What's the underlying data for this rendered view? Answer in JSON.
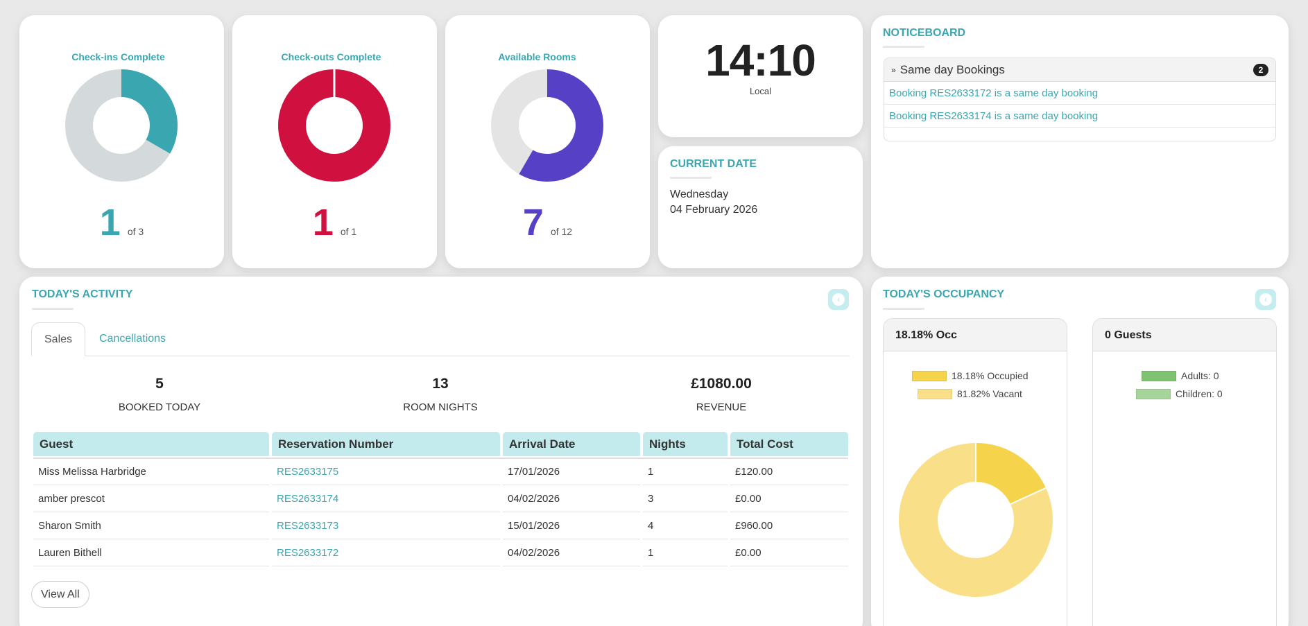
{
  "colors": {
    "teal": "#3aa6b0",
    "crimson": "#d01140",
    "purple": "#5540c6",
    "ring_bg": "#d4d9dc",
    "ring_bg_light": "#e4e4e4",
    "occupied": "#f5d34a",
    "vacant": "#f9e088",
    "adults": "#7ec36f",
    "children": "#a6d59a"
  },
  "checkins": {
    "title": "Check-ins Complete",
    "count": "1",
    "of": "of 3",
    "value": 1,
    "total": 3
  },
  "checkouts": {
    "title": "Check-outs Complete",
    "count": "1",
    "of": "of 1",
    "value": 1,
    "total": 1
  },
  "rooms": {
    "title": "Available Rooms",
    "count": "7",
    "of": "of 12",
    "value": 7,
    "total": 12
  },
  "clock": {
    "time": "14:10",
    "zone": "Local"
  },
  "current_date": {
    "title": "CURRENT DATE",
    "day": "Wednesday",
    "date": "04 February 2026"
  },
  "noticeboard": {
    "title": "NOTICEBOARD",
    "group_label": "Same day Bookings",
    "badge": "2",
    "items": [
      "Booking RES2633172 is a same day booking",
      "Booking RES2633174 is a same day booking"
    ]
  },
  "activity": {
    "title": "TODAY'S ACTIVITY",
    "tabs": [
      "Sales",
      "Cancellations"
    ],
    "stats": [
      {
        "value": "5",
        "label": "BOOKED TODAY"
      },
      {
        "value": "13",
        "label": "ROOM NIGHTS"
      },
      {
        "value": "£1080.00",
        "label": "REVENUE"
      }
    ],
    "columns": [
      "Guest",
      "Reservation Number",
      "Arrival Date",
      "Nights",
      "Total Cost"
    ],
    "rows": [
      [
        "Miss Melissa Harbridge",
        "RES2633175",
        "17/01/2026",
        "1",
        "£120.00"
      ],
      [
        "amber prescot",
        "RES2633174",
        "04/02/2026",
        "3",
        "£0.00"
      ],
      [
        "Sharon Smith",
        "RES2633173",
        "15/01/2026",
        "4",
        "£960.00"
      ],
      [
        "Lauren Bithell",
        "RES2633172",
        "04/02/2026",
        "1",
        "£0.00"
      ]
    ],
    "view_all": "View All"
  },
  "occupancy": {
    "title": "TODAY'S OCCUPANCY",
    "occ_header": "18.18% Occ",
    "occ_legend": [
      "18.18% Occupied",
      "81.82% Vacant"
    ],
    "occupied_pct": 18.18,
    "guests_header": "0 Guests",
    "guests_legend": [
      "Adults: 0",
      "Children: 0"
    ]
  }
}
